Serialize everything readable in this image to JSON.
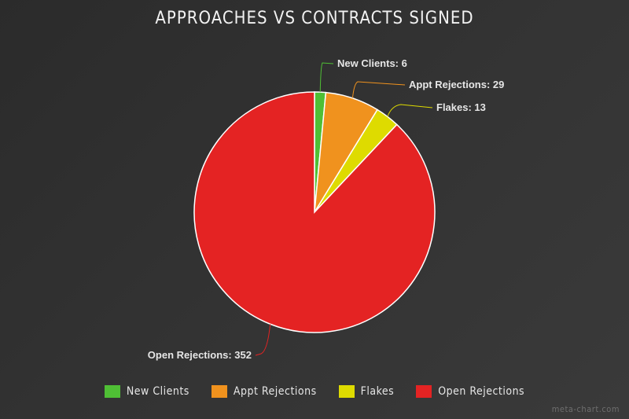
{
  "chart_data": {
    "type": "pie",
    "title": "APPROACHES VS CONTRACTS SIGNED",
    "categories": [
      "New Clients",
      "Appt Rejections",
      "Flakes",
      "Open Rejections"
    ],
    "values": [
      6,
      29,
      13,
      352
    ],
    "colors": [
      "#4fbf35",
      "#f0921e",
      "#dedb00",
      "#e42323"
    ],
    "data_labels": [
      "New Clients: 6",
      "Appt Rejections: 29",
      "Flakes: 13",
      "Open Rejections: 352"
    ],
    "legend_position": "bottom",
    "start_angle": "top, clockwise"
  },
  "watermark": "meta-chart.com"
}
